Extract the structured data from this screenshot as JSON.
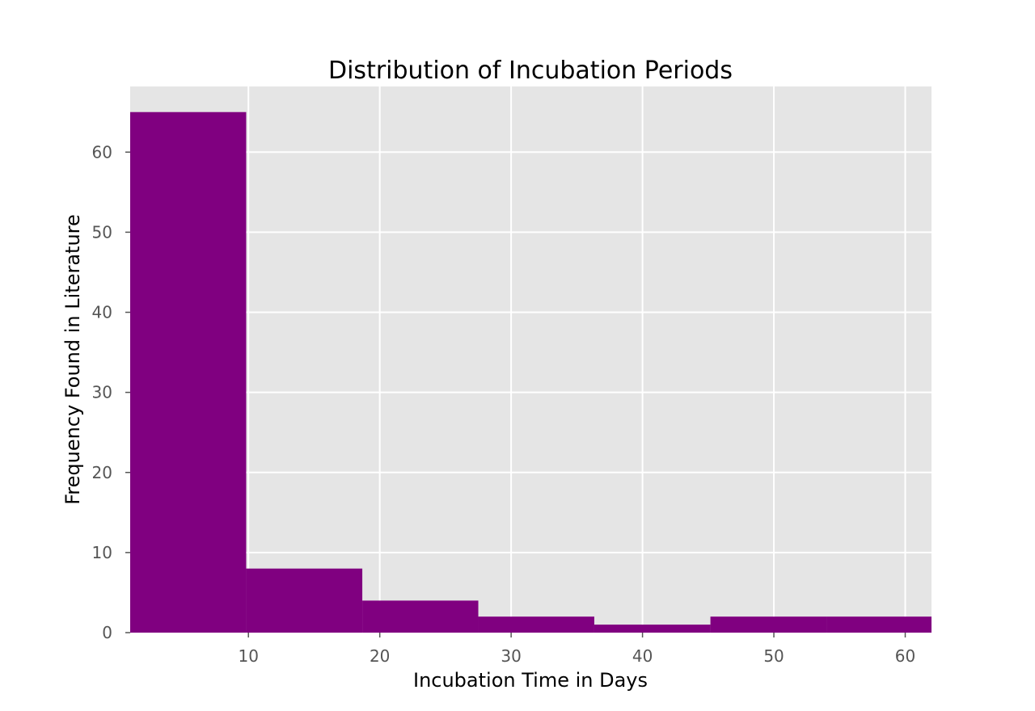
{
  "chart_data": {
    "type": "bar",
    "histogram": true,
    "title": "Distribution of Incubation Periods",
    "xlabel": "Incubation Time in Days",
    "ylabel": "Frequency Found in Literature",
    "bins": [
      {
        "start": 1.0,
        "end": 9.83,
        "count": 65
      },
      {
        "start": 9.83,
        "end": 18.67,
        "count": 8
      },
      {
        "start": 18.67,
        "end": 27.5,
        "count": 4
      },
      {
        "start": 27.5,
        "end": 36.33,
        "count": 2
      },
      {
        "start": 36.33,
        "end": 45.17,
        "count": 1
      },
      {
        "start": 45.17,
        "end": 54.0,
        "count": 2
      },
      {
        "start": 54.0,
        "end": 62.0,
        "count": 2
      }
    ],
    "xlim": [
      1,
      62
    ],
    "ylim": [
      0,
      68.2
    ],
    "xticks": [
      10,
      20,
      30,
      40,
      50,
      60
    ],
    "yticks": [
      0,
      10,
      20,
      30,
      40,
      50,
      60
    ],
    "grid": true,
    "colors": {
      "bar": "#800080",
      "plot_background": "#e5e5e5",
      "grid": "#ffffff"
    }
  }
}
